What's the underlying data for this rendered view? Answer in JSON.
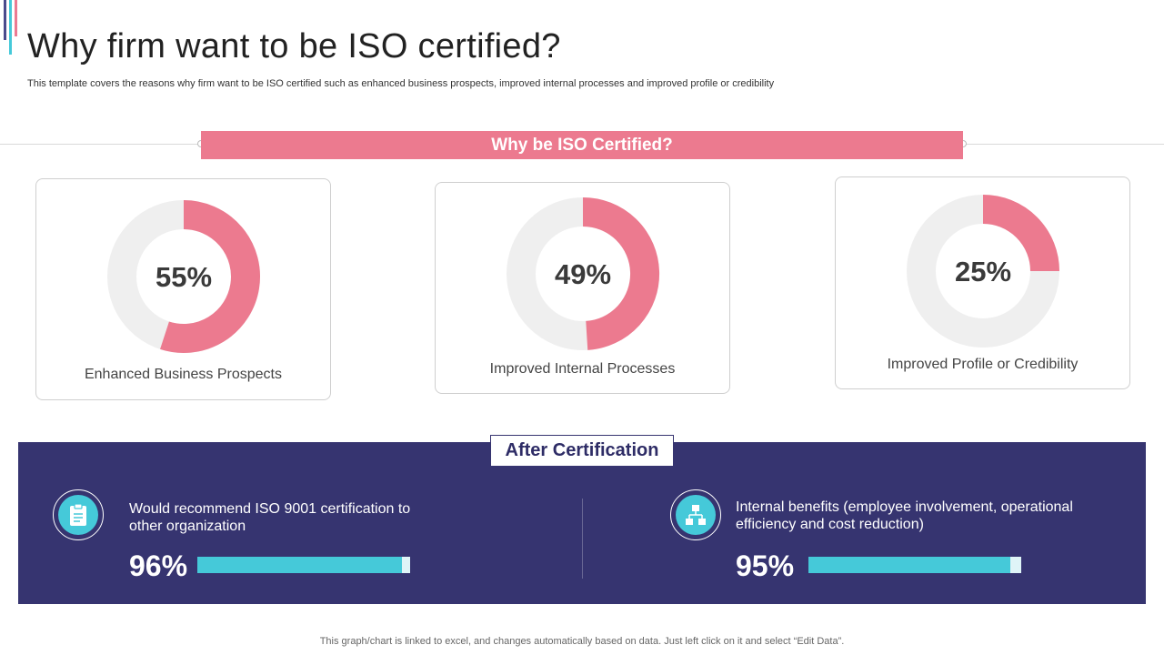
{
  "header": {
    "title": "Why firm want to be ISO certified?",
    "subtitle": "This template covers the reasons why firm want to be ISO certified such as enhanced business prospects, improved internal processes and improved profile or credibility"
  },
  "banner": {
    "label": "Why be ISO Certified?"
  },
  "colors": {
    "pink": "#ec7a8f",
    "ring_bg": "#efefef",
    "navy": "#363470",
    "cyan": "#45c9d9"
  },
  "chart_data": [
    {
      "type": "pie",
      "donut": true,
      "values": [
        55,
        49,
        25
      ],
      "labels": [
        "Enhanced Business Prospects",
        "Improved Internal Processes",
        "Improved Profile or Credibility"
      ],
      "display": [
        "55%",
        "49%",
        "25%"
      ]
    },
    {
      "type": "bar",
      "orientation": "horizontal",
      "title": "After Certification",
      "categories": [
        "Would recommend ISO 9001 certification to other organization",
        "Internal benefits (employee involvement, operational efficiency and cost reduction)"
      ],
      "values": [
        96,
        95
      ],
      "display": [
        "96%",
        "95%"
      ],
      "icons": [
        "clipboard-icon",
        "org-chart-icon"
      ]
    }
  ],
  "footer": {
    "note": "This graph/chart is linked to excel, and changes automatically based on data. Just left click on it and select “Edit Data”."
  }
}
